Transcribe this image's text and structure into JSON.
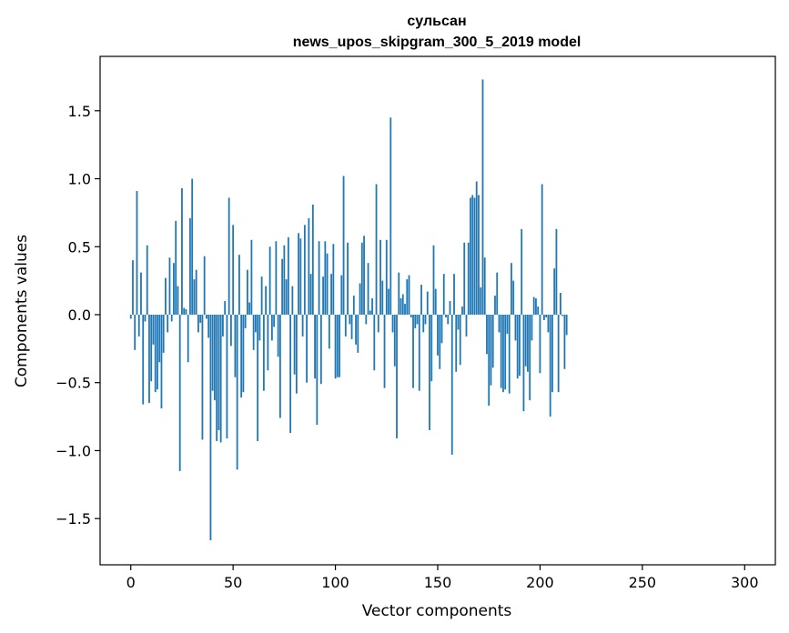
{
  "chart_data": {
    "type": "bar",
    "title": "сульсан",
    "subtitle": "news_upos_skipgram_300_5_2019 model",
    "xlabel": "Vector components",
    "ylabel": "Components values",
    "xlim": [
      -15,
      315
    ],
    "ylim": [
      -1.84,
      1.9
    ],
    "xticks": [
      0,
      50,
      100,
      150,
      200,
      250,
      300
    ],
    "xtick_labels": [
      "0",
      "50",
      "100",
      "150",
      "200",
      "250",
      "300"
    ],
    "yticks": [
      -1.5,
      -1.0,
      -0.5,
      0.0,
      0.5,
      1.0,
      1.5
    ],
    "ytick_labels": [
      "−1.5",
      "−1.0",
      "−0.5",
      "0.0",
      "0.5",
      "1.0",
      "1.5"
    ],
    "bar_color": "#1f77b4",
    "grid": false,
    "legend": "none",
    "x_start": 0,
    "values": [
      -0.03,
      0.4,
      -0.26,
      0.91,
      -0.16,
      0.31,
      -0.66,
      -0.05,
      0.51,
      -0.65,
      -0.49,
      -0.22,
      -0.57,
      -0.55,
      -0.35,
      -0.69,
      -0.28,
      0.27,
      -0.13,
      0.42,
      -0.05,
      0.38,
      0.69,
      0.21,
      -1.15,
      0.93,
      0.05,
      0.04,
      -0.35,
      0.71,
      1.0,
      0.26,
      0.33,
      -0.13,
      -0.06,
      -0.92,
      0.43,
      -0.03,
      -0.17,
      -1.66,
      -0.56,
      -0.63,
      -0.93,
      -0.85,
      -0.94,
      -0.16,
      0.1,
      -0.91,
      0.86,
      -0.23,
      0.66,
      -0.46,
      -1.14,
      0.44,
      -0.61,
      -0.57,
      -0.1,
      0.33,
      0.09,
      0.55,
      -0.26,
      -0.13,
      -0.93,
      -0.19,
      0.28,
      -0.56,
      0.21,
      -0.41,
      0.5,
      -0.19,
      -0.09,
      0.54,
      -0.31,
      -0.76,
      0.41,
      0.51,
      0.26,
      0.57,
      -0.87,
      0.21,
      -0.44,
      -0.58,
      0.6,
      0.56,
      -0.16,
      0.66,
      -0.5,
      0.71,
      0.3,
      0.81,
      -0.47,
      -0.81,
      0.54,
      -0.51,
      0.28,
      0.54,
      0.45,
      -0.25,
      0.3,
      0.52,
      -0.47,
      -0.46,
      -0.46,
      0.29,
      1.02,
      -0.16,
      0.53,
      -0.07,
      -0.18,
      0.14,
      -0.22,
      -0.28,
      0.23,
      0.53,
      0.58,
      -0.07,
      0.38,
      0.03,
      0.12,
      -0.41,
      0.96,
      -0.13,
      0.55,
      0.25,
      -0.54,
      0.55,
      0.19,
      1.45,
      -0.13,
      -0.38,
      -0.91,
      0.31,
      0.12,
      0.15,
      0.08,
      0.26,
      0.29,
      -0.02,
      -0.54,
      -0.1,
      -0.07,
      -0.56,
      0.22,
      -0.13,
      -0.07,
      0.17,
      -0.85,
      -0.49,
      0.51,
      0.19,
      -0.3,
      -0.4,
      -0.21,
      0.3,
      -0.02,
      -0.07,
      0.1,
      -1.03,
      0.3,
      -0.42,
      -0.11,
      -0.37,
      0.06,
      0.53,
      -0.16,
      0.53,
      0.86,
      0.88,
      0.86,
      0.98,
      0.88,
      0.2,
      1.73,
      0.42,
      -0.29,
      -0.67,
      -0.52,
      -0.39,
      0.14,
      0.31,
      -0.13,
      -0.54,
      -0.57,
      -0.55,
      -0.14,
      -0.58,
      0.38,
      0.25,
      -0.19,
      -0.47,
      -0.45,
      0.63,
      -0.71,
      -0.38,
      -0.42,
      -0.63,
      -0.19,
      0.13,
      0.12,
      0.06,
      -0.43,
      0.96,
      -0.04,
      -0.02,
      -0.13,
      -0.75,
      -0.57,
      0.34,
      0.63,
      -0.57,
      0.16,
      -0.01,
      -0.4,
      -0.15
    ]
  }
}
